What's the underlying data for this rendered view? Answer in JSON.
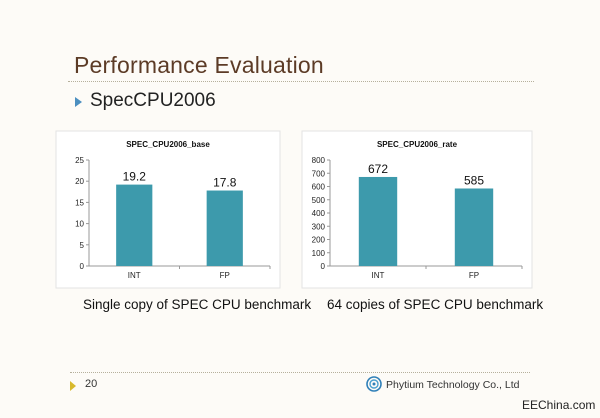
{
  "slide": {
    "title": "Performance Evaluation",
    "subtitle": "SpecCPU2006",
    "page_number": "20",
    "company": "Phytium Technology Co., Ltd",
    "watermark": "EEChina.com",
    "bar_color": "#3d9aac"
  },
  "captions": {
    "left": "Single copy of SPEC CPU benchmark",
    "right": "64 copies of SPEC CPU benchmark"
  },
  "chart_data": [
    {
      "type": "bar",
      "title": "SPEC_CPU2006_base",
      "categories": [
        "INT",
        "FP"
      ],
      "values": [
        19.2,
        17.8
      ],
      "value_labels": [
        "19.2",
        "17.8"
      ],
      "ylim": [
        0,
        25
      ],
      "yticks": [
        0,
        5,
        10,
        15,
        20,
        25
      ],
      "grid": false,
      "legend": "none"
    },
    {
      "type": "bar",
      "title": "SPEC_CPU2006_rate",
      "categories": [
        "INT",
        "FP"
      ],
      "values": [
        672,
        585
      ],
      "value_labels": [
        "672",
        "585"
      ],
      "ylim": [
        0,
        800
      ],
      "yticks": [
        0,
        100,
        200,
        300,
        400,
        500,
        600,
        700,
        800
      ],
      "grid": false,
      "legend": "none"
    }
  ]
}
